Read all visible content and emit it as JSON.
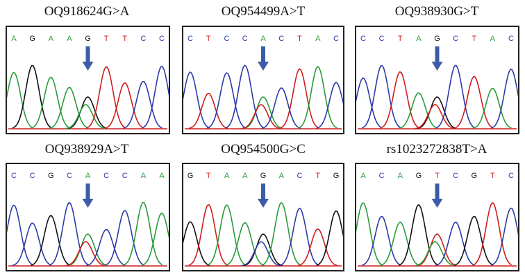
{
  "colors": {
    "A": "#2a9a3a",
    "C": "#2b3aa8",
    "G": "#111111",
    "T": "#d01c1c",
    "arrow": "#3d5ca8",
    "baseline": "#d01c1c"
  },
  "panels": [
    {
      "title": "OQ918624G>A",
      "bases": [
        "A",
        "G",
        "A",
        "A",
        "G",
        "T",
        "T",
        "C",
        "C"
      ],
      "variant_index": 4,
      "variant_second_base": "A"
    },
    {
      "title": "OQ954499A>T",
      "bases": [
        "C",
        "T",
        "C",
        "C",
        "A",
        "C",
        "T",
        "A",
        "C"
      ],
      "variant_index": 4,
      "variant_second_base": "T"
    },
    {
      "title": "OQ938930G>T",
      "bases": [
        "C",
        "C",
        "T",
        "A",
        "G",
        "C",
        "T",
        "A",
        "C"
      ],
      "variant_index": 4,
      "variant_second_base": "T"
    },
    {
      "title": "OQ938929A>T",
      "bases": [
        "C",
        "C",
        "G",
        "C",
        "A",
        "C",
        "C",
        "A",
        "A"
      ],
      "variant_index": 4,
      "variant_second_base": "T"
    },
    {
      "title": "OQ954500G>C",
      "bases": [
        "G",
        "T",
        "A",
        "A",
        "G",
        "A",
        "C",
        "T",
        "G"
      ],
      "variant_index": 4,
      "variant_second_base": "C"
    },
    {
      "title": "rs1023272838T>A",
      "bases": [
        "A",
        "C",
        "A",
        "G",
        "T",
        "C",
        "G",
        "T",
        "C"
      ],
      "variant_index": 4,
      "variant_second_base": "A"
    }
  ]
}
